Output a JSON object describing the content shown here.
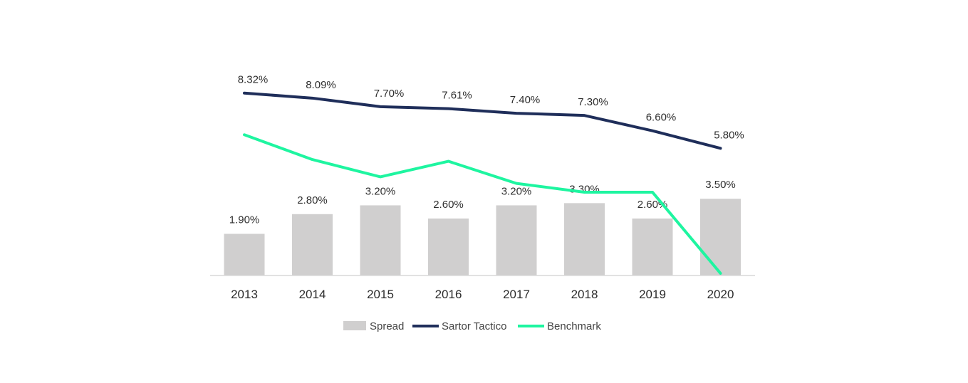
{
  "chart_data": {
    "type": "bar",
    "categories": [
      "2013",
      "2014",
      "2015",
      "2016",
      "2017",
      "2018",
      "2019",
      "2020"
    ],
    "series": [
      {
        "name": "Spread",
        "type": "bar",
        "values": [
          1.9,
          2.8,
          3.2,
          2.6,
          3.2,
          3.3,
          2.6,
          3.5
        ],
        "labels": [
          "1.90%",
          "2.80%",
          "3.20%",
          "2.60%",
          "3.20%",
          "3.30%",
          "2.60%",
          "3.50%"
        ],
        "color": "#d0cfcf"
      },
      {
        "name": "Sartor Tactico",
        "type": "line",
        "values": [
          8.32,
          8.09,
          7.7,
          7.61,
          7.4,
          7.3,
          6.6,
          5.8
        ],
        "labels": [
          "8.32%",
          "8.09%",
          "7.70%",
          "7.61%",
          "7.40%",
          "7.30%",
          "6.60%",
          "5.80%"
        ],
        "color": "#1f2e5a"
      },
      {
        "name": "Benchmark",
        "type": "line",
        "values": [
          6.42,
          5.29,
          4.5,
          5.21,
          4.2,
          3.8,
          3.8,
          0.1
        ],
        "color": "#1ef5a0"
      }
    ],
    "ylim": [
      0,
      12.5
    ],
    "grid": false,
    "legend": "bottom-center"
  }
}
